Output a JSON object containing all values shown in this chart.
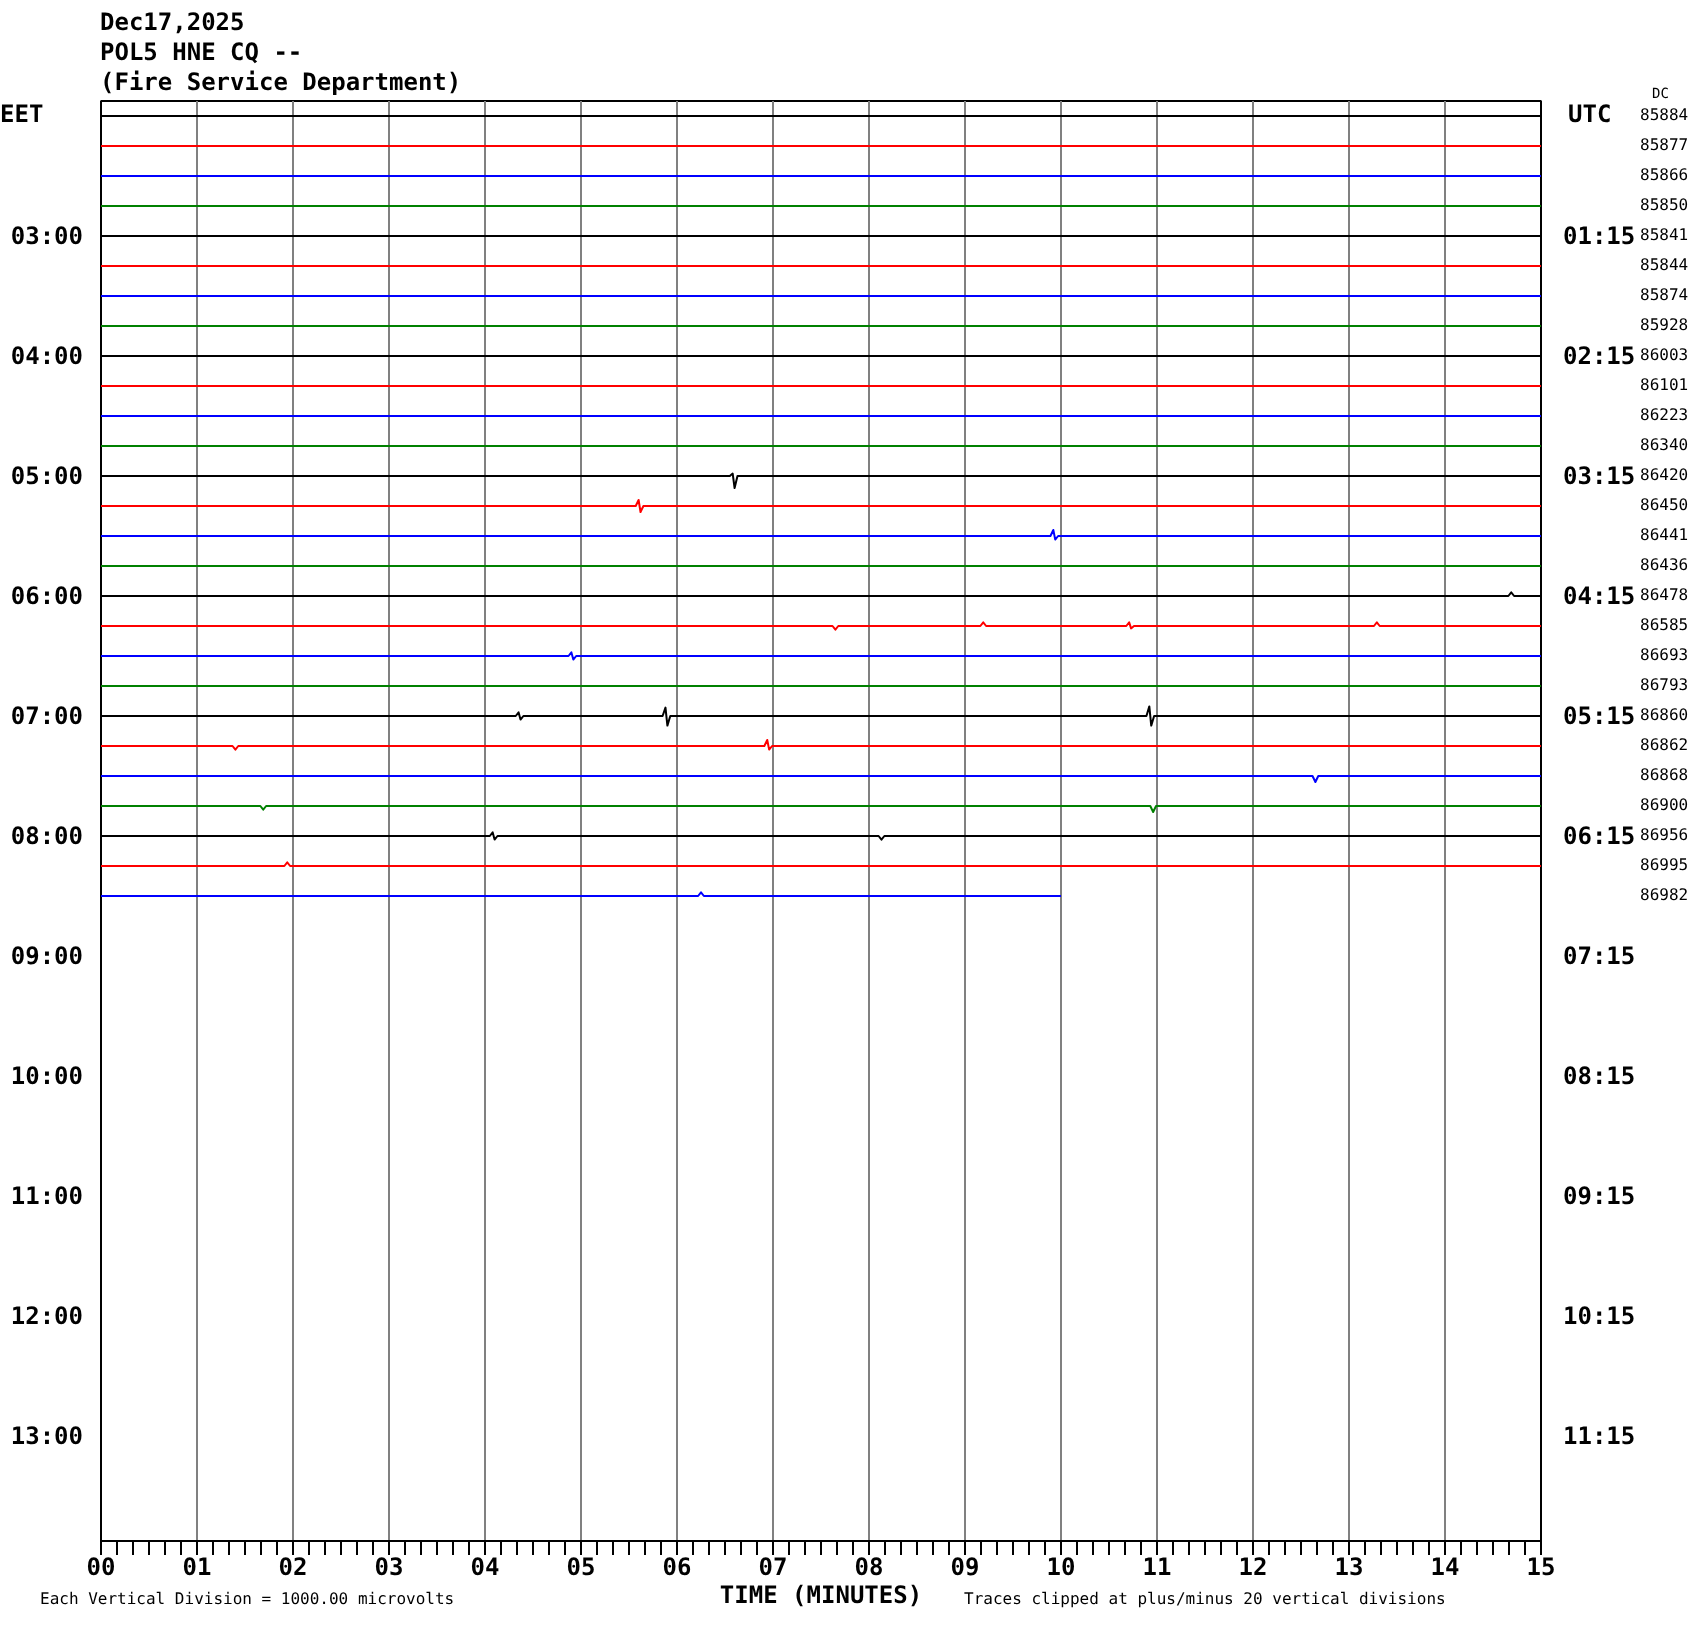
{
  "chart_data": {
    "type": "line",
    "title": "Dec17,2025",
    "subtitle": "POL5 HNE CQ --\n(Fire Service Department)",
    "xlabel": "TIME (MINUTES)",
    "ylabel": "EET",
    "y2label": "UTC",
    "annotations": [
      "DC",
      "85884",
      "85877",
      "85866",
      "85850",
      "85841",
      "85844",
      "85874",
      "85928",
      "86003",
      "86101",
      "86223",
      "86340",
      "86420",
      "86450",
      "86441",
      "86436",
      "86478",
      "86585",
      "86693",
      "86793",
      "86860",
      "86862",
      "86868",
      "86900",
      "86956",
      "86995",
      "86982",
      "Each Vertical Division = 1000.00 microvolts",
      "Traces clipped at plus/minus 20 vertical divisions"
    ],
    "grid": "x",
    "xlim": [
      0,
      15
    ],
    "xticks": [
      {
        "value": 0,
        "label": "00"
      },
      {
        "value": 1,
        "label": "01"
      },
      {
        "value": 2,
        "label": "02"
      },
      {
        "value": 3,
        "label": "03"
      },
      {
        "value": 4,
        "label": "04"
      },
      {
        "value": 5,
        "label": "05"
      },
      {
        "value": 6,
        "label": "06"
      },
      {
        "value": 7,
        "label": "07"
      },
      {
        "value": 8,
        "label": "08"
      },
      {
        "value": 9,
        "label": "09"
      },
      10,
      11,
      12,
      13,
      14,
      15,
      {
        "value": 0.167,
        "label": null
      },
      {
        "value": 0.333,
        "label": null
      },
      {
        "value": 0.5,
        "label": null
      },
      {
        "value": 0.667,
        "label": null
      },
      {
        "value": 0.833,
        "label": null
      },
      {
        "value": 1.167,
        "label": null
      },
      {
        "value": 1.333,
        "label": null
      },
      {
        "value": 1.5,
        "label": null
      },
      {
        "value": 1.667,
        "label": null
      },
      {
        "value": 1.833,
        "label": null
      },
      {
        "value": 2.167,
        "label": null
      },
      {
        "value": 2.333,
        "label": null
      },
      {
        "value": 2.5,
        "label": null
      },
      {
        "value": 2.667,
        "label": null
      },
      {
        "value": 2.833,
        "label": null
      },
      {
        "value": 3.167,
        "label": null
      },
      {
        "value": 3.333,
        "label": null
      },
      {
        "value": 3.5,
        "label": null
      },
      {
        "value": 3.667,
        "label": null
      },
      {
        "value": 3.833,
        "label": null
      },
      {
        "value": 4.167,
        "label": null
      },
      {
        "value": 4.333,
        "label": null
      },
      {
        "value": 4.5,
        "label": null
      },
      {
        "value": 4.667,
        "label": null
      },
      {
        "value": 4.833,
        "label": null
      },
      {
        "value": 5.167,
        "label": null
      },
      {
        "value": 5.333,
        "label": null
      },
      {
        "value": 5.5,
        "label": null
      },
      {
        "value": 5.667,
        "label": null
      },
      {
        "value": 5.833,
        "label": null
      },
      {
        "value": 6.167,
        "label": null
      },
      {
        "value": 6.333,
        "label": null
      },
      {
        "value": 6.5,
        "label": null
      },
      {
        "value": 6.667,
        "label": null
      },
      {
        "value": 6.833,
        "label": null
      },
      {
        "value": 7.167,
        "label": null
      },
      {
        "value": 7.333,
        "label": null
      },
      {
        "value": 7.5,
        "label": null
      },
      {
        "value": 7.667,
        "label": null
      },
      {
        "value": 7.833,
        "label": null
      },
      {
        "value": 8.167,
        "label": null
      },
      {
        "value": 8.333,
        "label": null
      },
      {
        "value": 8.5,
        "label": null
      },
      {
        "value": 8.667,
        "label": null
      },
      {
        "value": 8.833,
        "label": null
      },
      {
        "value": 9.167,
        "label": null
      },
      {
        "value": 9.333,
        "label": null
      },
      {
        "value": 9.5,
        "label": null
      },
      {
        "value": 9.667,
        "label": null
      },
      {
        "value": 9.833,
        "label": null
      },
      {
        "value": 10.167,
        "label": null
      },
      {
        "value": 10.333,
        "label": null
      },
      {
        "value": 10.5,
        "label": null
      },
      {
        "value": 10.667,
        "label": null
      },
      {
        "value": 10.833,
        "label": null
      },
      {
        "value": 11.167,
        "label": null
      },
      {
        "value": 11.333,
        "label": null
      },
      {
        "value": 11.5,
        "label": null
      },
      {
        "value": 11.667,
        "label": null
      },
      {
        "value": 11.833,
        "label": null
      },
      {
        "value": 12.167,
        "label": null
      },
      {
        "value": 12.333,
        "label": null
      },
      {
        "value": 12.5,
        "label": null
      },
      {
        "value": 12.667,
        "label": null
      },
      {
        "value": 12.833,
        "label": null
      },
      {
        "value": 13.167,
        "label": null
      },
      {
        "value": 13.333,
        "label": null
      },
      {
        "value": 13.5,
        "label": null
      },
      {
        "value": 13.667,
        "label": null
      },
      {
        "value": 13.833,
        "label": null
      },
      {
        "value": 14.167,
        "label": null
      },
      {
        "value": 14.333,
        "label": null
      },
      {
        "value": 14.5,
        "label": null
      },
      {
        "value": 14.667,
        "label": null
      },
      {
        "value": 14.833,
        "label": null
      }
    ],
    "ylim": [
      13.875,
      1.875
    ],
    "yticks": [
      {
        "value": 3,
        "label": "03:00"
      },
      {
        "value": 4,
        "label": "04:00"
      },
      {
        "value": 5,
        "label": "05:00"
      },
      {
        "value": 6,
        "label": "06:00"
      },
      {
        "value": 7,
        "label": "07:00"
      },
      {
        "value": 8,
        "label": "08:00"
      },
      {
        "value": 9,
        "label": "09:00"
      },
      {
        "value": 10,
        "label": "10:00"
      },
      {
        "value": 11,
        "label": "11:00"
      },
      {
        "value": 12,
        "label": "12:00"
      },
      {
        "value": 13,
        "label": "13:00"
      }
    ],
    "y2lim": [
      12.125,
      0.125
    ],
    "y2ticks": [
      {
        "value": 1.25,
        "label": "01:15"
      },
      {
        "value": 2.25,
        "label": "02:15"
      },
      {
        "value": 3.25,
        "label": "03:15"
      },
      {
        "value": 4.25,
        "label": "04:15"
      },
      {
        "value": 5.25,
        "label": "05:15"
      },
      {
        "value": 6.25,
        "label": "06:15"
      },
      {
        "value": 7.25,
        "label": "07:15"
      },
      {
        "value": 8.25,
        "label": "08:15"
      },
      {
        "value": 9.25,
        "label": "09:15"
      },
      {
        "value": 10.25,
        "label": "10:15"
      },
      {
        "value": 11.25,
        "label": "11:15"
      }
    ],
    "series": [
      {
        "color": "#000000",
        "x": [
          0,
          15
        ],
        "values": [
          2,
          2
        ]
      },
      {
        "color": "#ff0000",
        "x": [
          0,
          15
        ],
        "values": [
          2.25,
          2.25
        ]
      },
      {
        "color": "#0000ff",
        "x": [
          0,
          15
        ],
        "values": [
          2.5,
          2.5
        ]
      },
      {
        "color": "#008000",
        "x": [
          0,
          15
        ],
        "values": [
          2.75,
          2.75
        ]
      },
      {
        "color": "#000000",
        "x": [
          0,
          15
        ],
        "values": [
          3,
          3
        ]
      },
      {
        "color": "#ff0000",
        "x": [
          0,
          15
        ],
        "values": [
          3.25,
          3.25
        ]
      },
      {
        "color": "#0000ff",
        "x": [
          0,
          15
        ],
        "values": [
          3.5,
          3.5
        ]
      },
      {
        "color": "#008000",
        "x": [
          0,
          15
        ],
        "values": [
          3.75,
          3.75
        ]
      },
      {
        "color": "#000000",
        "x": [
          0,
          15
        ],
        "values": [
          4,
          4
        ]
      },
      {
        "color": "#ff0000",
        "x": [
          0,
          15
        ],
        "values": [
          4.25,
          4.25
        ]
      },
      {
        "color": "#0000ff",
        "x": [
          0,
          15
        ],
        "values": [
          4.5,
          4.5
        ]
      },
      {
        "color": "#008000",
        "x": [
          0,
          15
        ],
        "values": [
          4.75,
          4.75
        ]
      },
      {
        "color": "#000000",
        "x": [
          0,
          6.55,
          6.58,
          6.6,
          6.63,
          15
        ],
        "values": [
          5,
          5,
          4.98,
          5.1,
          5,
          5
        ]
      },
      {
        "color": "#ff0000",
        "x": [
          0,
          5.57,
          5.6,
          5.62,
          5.65,
          15
        ],
        "values": [
          5.25,
          5.25,
          5.2,
          5.3,
          5.25,
          5.25
        ]
      },
      {
        "color": "#0000ff",
        "x": [
          0,
          9.89,
          9.92,
          9.94,
          9.97,
          15
        ],
        "values": [
          5.5,
          5.5,
          5.45,
          5.53,
          5.5,
          5.5
        ]
      },
      {
        "color": "#008000",
        "x": [
          0,
          15
        ],
        "values": [
          5.75,
          5.75
        ]
      },
      {
        "color": "#000000",
        "x": [
          0,
          14.66,
          14.69,
          14.72,
          15
        ],
        "values": [
          6,
          6,
          5.97,
          6,
          6
        ]
      },
      {
        "color": "#ff0000",
        "x": [
          0,
          7.62,
          7.65,
          7.68,
          9.16,
          9.19,
          9.22,
          10.68,
          10.71,
          10.73,
          10.76,
          13.26,
          13.29,
          13.32,
          15
        ],
        "values": [
          6.25,
          6.25,
          6.28,
          6.25,
          6.25,
          6.22,
          6.25,
          6.25,
          6.22,
          6.27,
          6.25,
          6.25,
          6.22,
          6.25,
          6.25
        ]
      },
      {
        "color": "#0000ff",
        "x": [
          0,
          4.87,
          4.9,
          4.92,
          4.95,
          15
        ],
        "values": [
          6.5,
          6.5,
          6.47,
          6.53,
          6.5,
          6.5
        ]
      },
      {
        "color": "#008000",
        "x": [
          0,
          15
        ],
        "values": [
          6.75,
          6.75
        ]
      },
      {
        "color": "#000000",
        "x": [
          0,
          4.32,
          4.35,
          4.37,
          4.4,
          5.85,
          5.88,
          5.9,
          5.93,
          10.89,
          10.92,
          10.94,
          10.97,
          15
        ],
        "values": [
          7,
          7,
          6.97,
          7.03,
          7,
          7,
          6.93,
          7.08,
          7,
          7,
          6.92,
          7.08,
          7,
          7
        ]
      },
      {
        "color": "#ff0000",
        "x": [
          0,
          1.37,
          1.4,
          1.43,
          6.91,
          6.94,
          6.96,
          6.99,
          15
        ],
        "values": [
          7.25,
          7.25,
          7.28,
          7.25,
          7.25,
          7.2,
          7.28,
          7.25,
          7.25
        ]
      },
      {
        "color": "#0000ff",
        "x": [
          0,
          12.62,
          12.65,
          12.68,
          15
        ],
        "values": [
          7.5,
          7.5,
          7.55,
          7.5,
          7.5
        ]
      },
      {
        "color": "#008000",
        "x": [
          0,
          1.66,
          1.69,
          1.72,
          10.93,
          10.96,
          10.99,
          15
        ],
        "values": [
          7.75,
          7.75,
          7.78,
          7.75,
          7.75,
          7.8,
          7.75,
          7.75
        ]
      },
      {
        "color": "#000000",
        "x": [
          0,
          4.05,
          4.08,
          4.1,
          4.13,
          8.1,
          8.13,
          8.16,
          15
        ],
        "values": [
          8,
          8,
          7.97,
          8.03,
          8,
          8,
          8.03,
          8,
          8
        ]
      },
      {
        "color": "#ff0000",
        "x": [
          0,
          1.91,
          1.94,
          1.97,
          15
        ],
        "values": [
          8.25,
          8.25,
          8.22,
          8.25,
          8.25
        ]
      },
      {
        "color": "#0000ff",
        "x": [
          0,
          6.22,
          6.25,
          6.28,
          10
        ],
        "values": [
          8.5,
          8.5,
          8.47,
          8.5,
          8.5
        ]
      }
    ]
  }
}
